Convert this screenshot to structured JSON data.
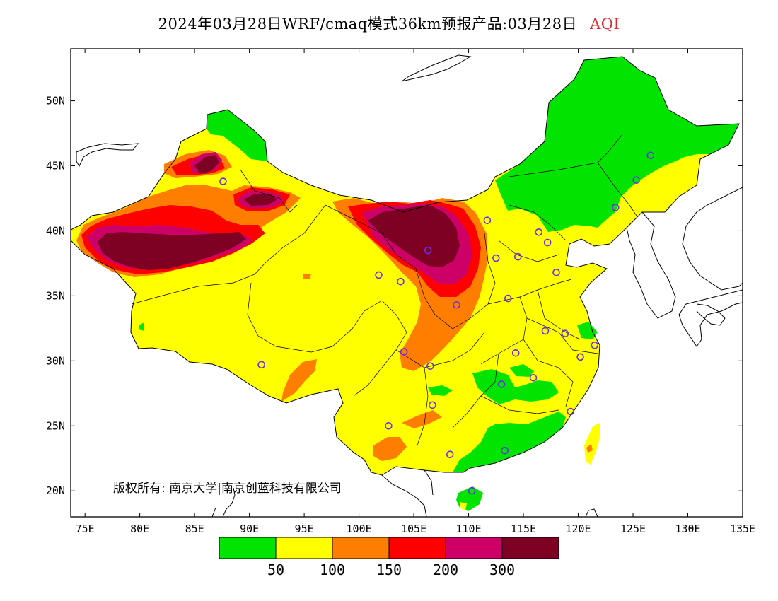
{
  "title": {
    "main": "2024年03月28日WRF/cmaq模式36km预报产品:03月28日",
    "variable": "AQI"
  },
  "axes": {
    "lat_ticks": [
      "20N",
      "25N",
      "30N",
      "35N",
      "40N",
      "45N",
      "50N"
    ],
    "lon_ticks": [
      "75E",
      "80E",
      "85E",
      "90E",
      "95E",
      "100E",
      "105E",
      "110E",
      "115E",
      "120E",
      "125E",
      "130E",
      "135E"
    ]
  },
  "copyright": "版权所有: 南京大学|南京创蓝科技有限公司",
  "legend": {
    "colors": [
      "#00e400",
      "#ffff00",
      "#ff7e00",
      "#ff0000",
      "#cc0066",
      "#7e0023"
    ],
    "labels": [
      "50",
      "100",
      "150",
      "200",
      "300"
    ]
  },
  "map_colors": {
    "background": "#ffffff",
    "coast": "#000000",
    "station": "#6a2ee8"
  },
  "stations": [
    [
      87.6,
      43.8
    ],
    [
      91.1,
      29.7
    ],
    [
      101.8,
      36.6
    ],
    [
      103.8,
      36.1
    ],
    [
      106.3,
      38.5
    ],
    [
      111.7,
      40.8
    ],
    [
      112.5,
      37.9
    ],
    [
      114.5,
      38.0
    ],
    [
      116.4,
      39.9
    ],
    [
      117.2,
      39.1
    ],
    [
      118.0,
      36.8
    ],
    [
      113.6,
      34.8
    ],
    [
      117.0,
      32.3
    ],
    [
      120.2,
      30.3
    ],
    [
      118.8,
      32.1
    ],
    [
      121.5,
      31.2
    ],
    [
      114.3,
      30.6
    ],
    [
      113.0,
      28.2
    ],
    [
      115.9,
      28.7
    ],
    [
      119.3,
      26.1
    ],
    [
      113.3,
      23.1
    ],
    [
      108.3,
      22.8
    ],
    [
      110.3,
      20.0
    ],
    [
      106.7,
      26.6
    ],
    [
      102.7,
      25.0
    ],
    [
      104.1,
      30.7
    ],
    [
      106.5,
      29.6
    ],
    [
      108.9,
      34.3
    ],
    [
      123.4,
      41.8
    ],
    [
      125.3,
      43.9
    ],
    [
      126.6,
      45.8
    ]
  ]
}
